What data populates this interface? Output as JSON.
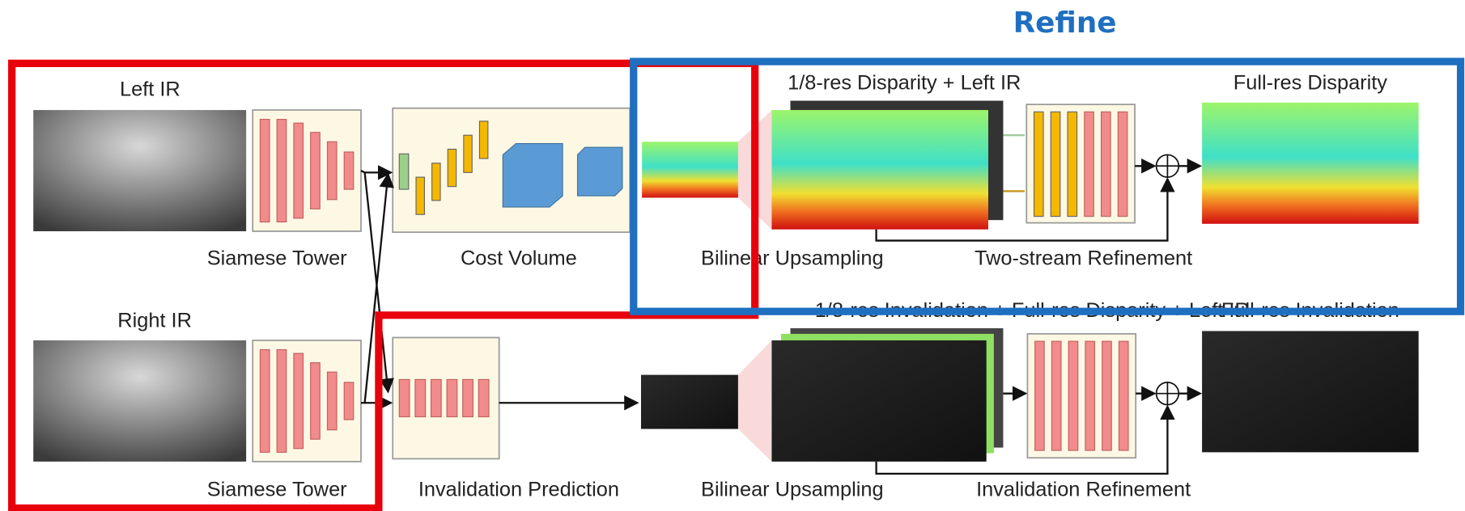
{
  "header": {
    "title": "Refine"
  },
  "top": {
    "input": "Left IR",
    "tower": "Siamese Tower",
    "cost": "Cost Volume",
    "upsample": "Bilinear Upsampling",
    "refine_input": "1/8-res Disparity + Left IR",
    "refinement": "Two-stream Refinement",
    "output": "Full-res Disparity"
  },
  "bottom": {
    "input": "Right IR",
    "tower": "Siamese Tower",
    "prediction": "Invalidation Prediction",
    "upsample": "Bilinear Upsampling",
    "refine_input": "1/8-res Invalidation + Full-res Disparity + Left IR",
    "refinement": "Invalidation Refinement",
    "output": "Full-res Invalidation"
  }
}
